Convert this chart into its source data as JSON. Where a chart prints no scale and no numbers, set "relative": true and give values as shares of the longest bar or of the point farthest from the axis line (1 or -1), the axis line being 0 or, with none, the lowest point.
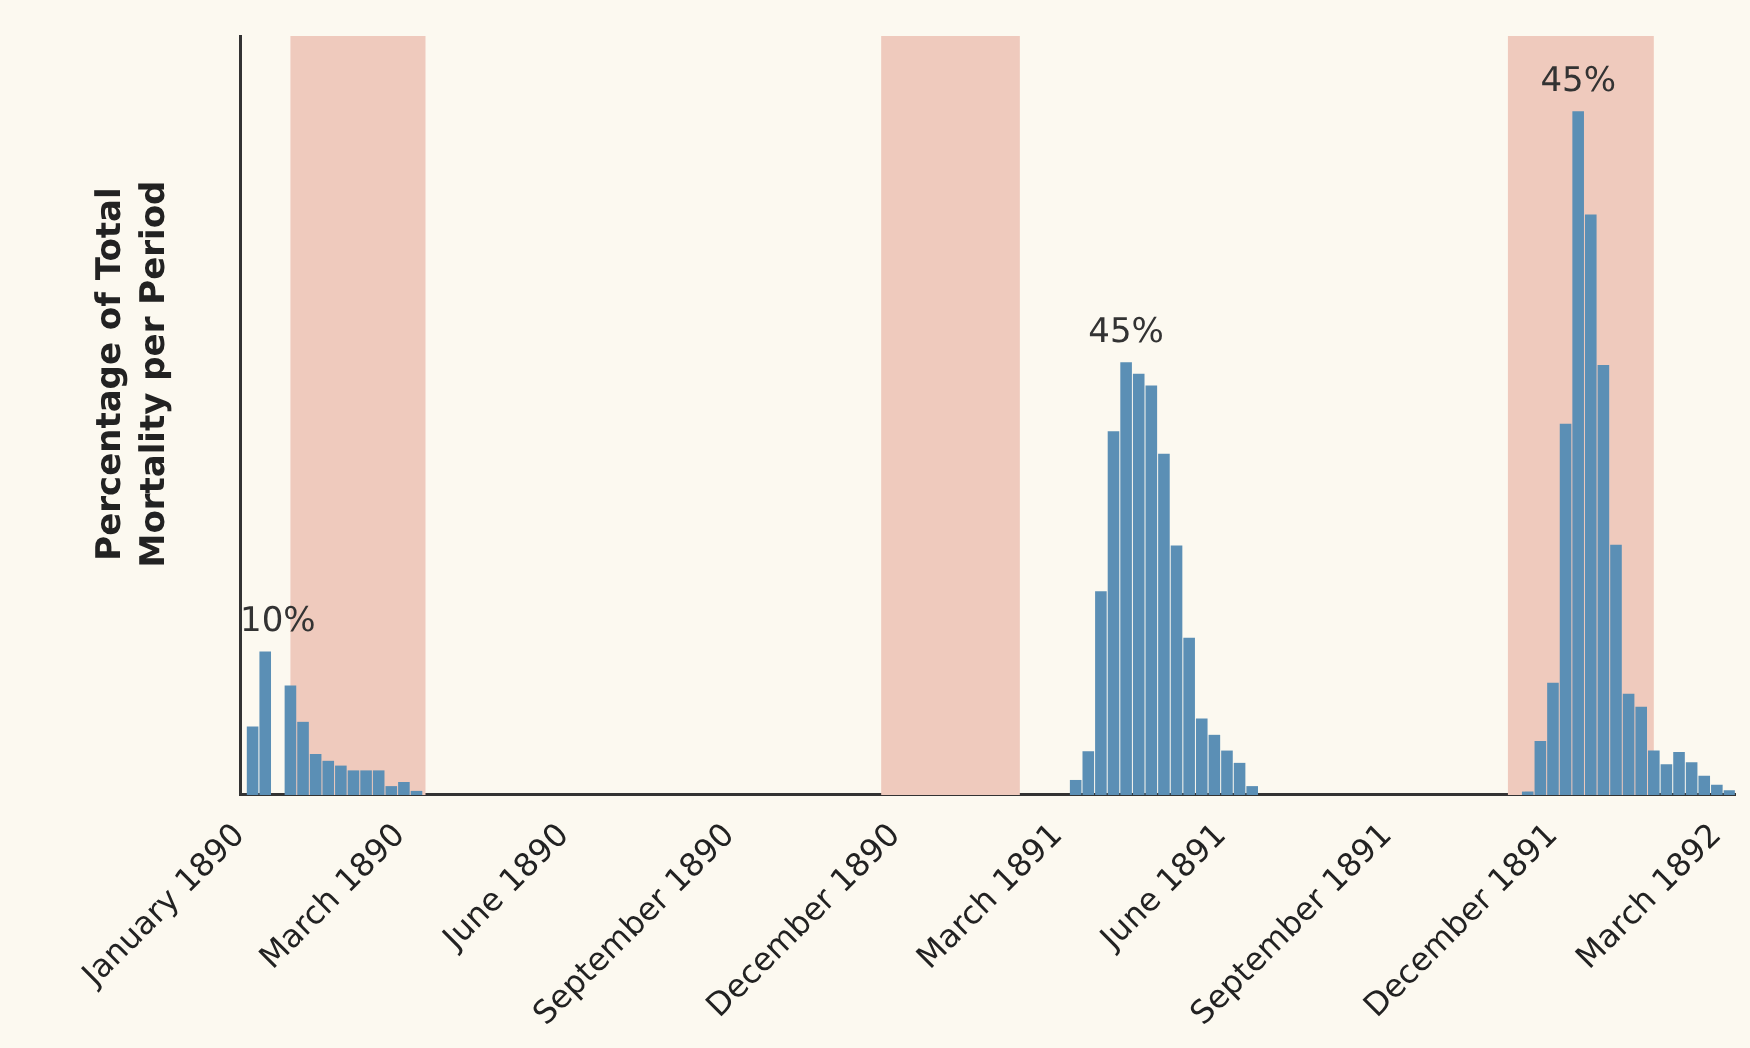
{
  "chart_data": {
    "type": "bar",
    "ylabel": "Percentage of Total Mortality per Period",
    "relative": true,
    "color": "#5b8fb5",
    "x": [
      "1890-01-08",
      "1890-01-15",
      "1890-01-22",
      "1890-01-29",
      "1890-02-05",
      "1890-02-12",
      "1890-02-19",
      "1890-02-26",
      "1890-03-05",
      "1890-03-12",
      "1890-03-19",
      "1890-03-26",
      "1890-04-02",
      "1890-04-09",
      "1891-04-10",
      "1891-04-17",
      "1891-04-24",
      "1891-05-01",
      "1891-05-08",
      "1891-05-15",
      "1891-05-22",
      "1891-05-29",
      "1891-06-05",
      "1891-06-12",
      "1891-06-19",
      "1891-06-26",
      "1891-07-03",
      "1891-07-10",
      "1891-07-17",
      "1891-12-17",
      "1891-12-24",
      "1891-12-31",
      "1892-01-07",
      "1892-01-14",
      "1892-01-21",
      "1892-01-28",
      "1892-02-04",
      "1892-02-11",
      "1892-02-18",
      "1892-02-25",
      "1892-03-03",
      "1892-03-10",
      "1892-03-17",
      "1892-03-24",
      "1892-03-31",
      "1892-04-07"
    ],
    "values": [
      0.1,
      0.21,
      0,
      0.16,
      0.107,
      0.06,
      0.05,
      0.043,
      0.036,
      0.036,
      0.036,
      0.013,
      0.019,
      0.006,
      0.022,
      0.064,
      0.298,
      0.532,
      0.633,
      0.616,
      0.599,
      0.499,
      0.365,
      0.23,
      0.112,
      0.088,
      0.065,
      0.047,
      0.013,
      0.005,
      0.079,
      0.164,
      0.543,
      1.0,
      0.849,
      0.629,
      0.366,
      0.148,
      0.129,
      0.065,
      0.045,
      0.063,
      0.048,
      0.028,
      0.015,
      0.007
    ],
    "xlim": [
      "1890-01-01",
      "1892-04-10"
    ],
    "xticks": [
      {
        "value": "1890-01-01",
        "label": "January 1890"
      },
      {
        "value": "1890-03-31",
        "label": "March 1890"
      },
      {
        "value": "1890-06-30",
        "label": "June 1890"
      },
      {
        "value": "1890-09-30",
        "label": "September 1890"
      },
      {
        "value": "1890-12-31",
        "label": "December 1890"
      },
      {
        "value": "1891-03-31",
        "label": "March 1891"
      },
      {
        "value": "1891-06-30",
        "label": "June 1891"
      },
      {
        "value": "1891-09-30",
        "label": "September 1891"
      },
      {
        "value": "1891-12-31",
        "label": "December 1891"
      },
      {
        "value": "1892-03-31",
        "label": "March 1892"
      }
    ],
    "bands": [
      {
        "axis": "x",
        "from": "1890-01-29",
        "to": "1890-04-14",
        "color": "#efcabd"
      },
      {
        "axis": "x",
        "from": "1890-12-23",
        "to": "1891-03-10",
        "color": "#efcabd"
      },
      {
        "axis": "x",
        "from": "1891-12-06",
        "to": "1892-02-25",
        "color": "#efcabd"
      }
    ],
    "annotations": [
      {
        "text": "10%",
        "x": "1890-01-22",
        "y": 0.21
      },
      {
        "text": "45%",
        "x": "1891-05-08",
        "y": 0.633
      },
      {
        "text": "45%",
        "x": "1892-01-14",
        "y": 1.0
      }
    ]
  }
}
